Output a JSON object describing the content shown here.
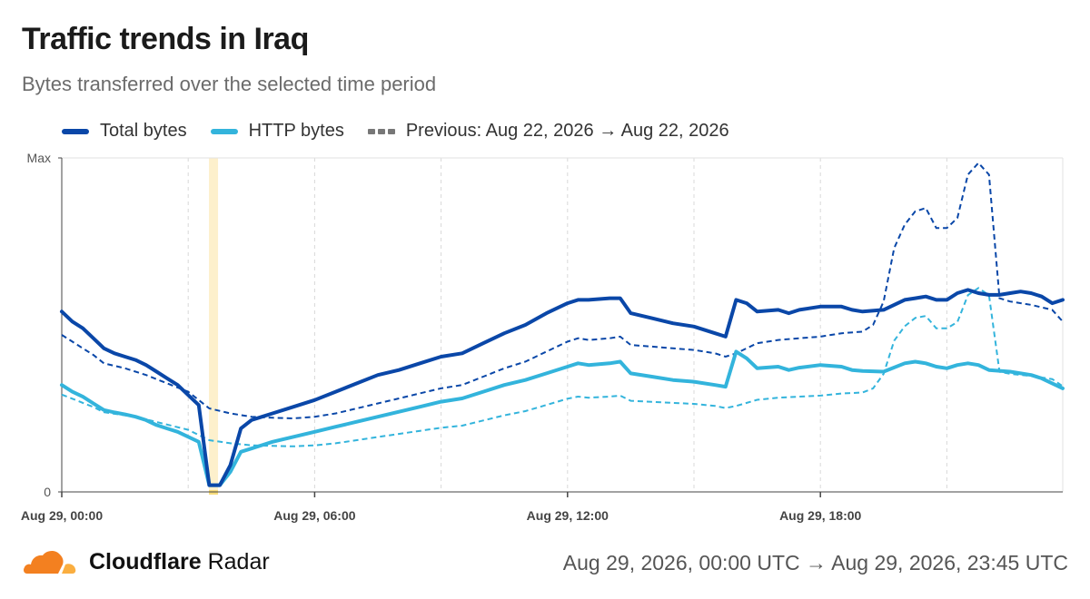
{
  "header": {
    "title": "Traffic trends in Iraq",
    "subtitle": "Bytes transferred over the selected time period"
  },
  "legend": {
    "total": "Total bytes",
    "http": "HTTP bytes",
    "previous": "Previous: Aug 22, 2026 → Aug 22, 2026"
  },
  "footer": {
    "brand_bold": "Cloudflare",
    "brand_light": "Radar",
    "range": "Aug 29, 2026, 00:00 UTC → Aug 29, 2026, 23:45 UTC"
  },
  "colors": {
    "total": "#0a47a8",
    "http": "#33b4dc",
    "previous_total": "#0a47a8",
    "previous_http": "#33b4dc",
    "highlight": "#fdf0cc",
    "grid": "#d8d8d8",
    "brand_orange": "#f38020"
  },
  "chart_data": {
    "type": "line",
    "title": "Traffic trends in Iraq",
    "ylabel": "",
    "y_tick_labels": [
      "0",
      "Max"
    ],
    "ylim": [
      0,
      1
    ],
    "xlim": [
      0,
      23.75
    ],
    "x_unit": "hour of Aug 29, 2026 (UTC)",
    "x_ticks": [
      0,
      6,
      12,
      18
    ],
    "x_tick_labels": [
      "Aug 29, 00:00",
      "Aug 29, 06:00",
      "Aug 29, 12:00",
      "Aug 29, 18:00"
    ],
    "highlight_x": 3.6,
    "grid": "vertical dashed",
    "legend_position": "top-left",
    "series": [
      {
        "name": "Total bytes",
        "style": "solid",
        "points": [
          [
            0,
            0.54
          ],
          [
            0.25,
            0.51
          ],
          [
            0.5,
            0.49
          ],
          [
            0.75,
            0.46
          ],
          [
            1,
            0.43
          ],
          [
            1.25,
            0.415
          ],
          [
            1.5,
            0.405
          ],
          [
            1.75,
            0.395
          ],
          [
            2,
            0.38
          ],
          [
            2.25,
            0.36
          ],
          [
            2.5,
            0.34
          ],
          [
            2.75,
            0.32
          ],
          [
            3,
            0.29
          ],
          [
            3.25,
            0.26
          ],
          [
            3.5,
            0.02
          ],
          [
            3.75,
            0.02
          ],
          [
            4,
            0.08
          ],
          [
            4.25,
            0.19
          ],
          [
            4.5,
            0.215
          ],
          [
            4.75,
            0.225
          ],
          [
            5,
            0.235
          ],
          [
            5.5,
            0.255
          ],
          [
            6,
            0.275
          ],
          [
            6.5,
            0.3
          ],
          [
            7,
            0.325
          ],
          [
            7.5,
            0.35
          ],
          [
            8,
            0.365
          ],
          [
            8.5,
            0.385
          ],
          [
            9,
            0.405
          ],
          [
            9.5,
            0.415
          ],
          [
            10,
            0.445
          ],
          [
            10.5,
            0.475
          ],
          [
            11,
            0.5
          ],
          [
            11.5,
            0.535
          ],
          [
            12,
            0.565
          ],
          [
            12.25,
            0.575
          ],
          [
            12.5,
            0.575
          ],
          [
            13,
            0.58
          ],
          [
            13.25,
            0.58
          ],
          [
            13.5,
            0.535
          ],
          [
            14,
            0.52
          ],
          [
            14.5,
            0.505
          ],
          [
            15,
            0.495
          ],
          [
            15.5,
            0.475
          ],
          [
            15.75,
            0.465
          ],
          [
            16,
            0.575
          ],
          [
            16.25,
            0.565
          ],
          [
            16.5,
            0.54
          ],
          [
            17,
            0.545
          ],
          [
            17.25,
            0.535
          ],
          [
            17.5,
            0.545
          ],
          [
            18,
            0.555
          ],
          [
            18.5,
            0.555
          ],
          [
            18.75,
            0.545
          ],
          [
            19,
            0.54
          ],
          [
            19.5,
            0.545
          ],
          [
            20,
            0.575
          ],
          [
            20.25,
            0.58
          ],
          [
            20.5,
            0.585
          ],
          [
            20.75,
            0.575
          ],
          [
            21,
            0.575
          ],
          [
            21.25,
            0.595
          ],
          [
            21.5,
            0.605
          ],
          [
            21.75,
            0.595
          ],
          [
            22,
            0.59
          ],
          [
            22.25,
            0.59
          ],
          [
            22.5,
            0.595
          ],
          [
            22.75,
            0.6
          ],
          [
            23,
            0.595
          ],
          [
            23.25,
            0.585
          ],
          [
            23.5,
            0.565
          ],
          [
            23.75,
            0.575
          ]
        ]
      },
      {
        "name": "HTTP bytes",
        "style": "solid",
        "points": [
          [
            0,
            0.32
          ],
          [
            0.25,
            0.3
          ],
          [
            0.5,
            0.285
          ],
          [
            0.75,
            0.265
          ],
          [
            1,
            0.245
          ],
          [
            1.25,
            0.238
          ],
          [
            1.5,
            0.232
          ],
          [
            1.75,
            0.225
          ],
          [
            2,
            0.215
          ],
          [
            2.25,
            0.2
          ],
          [
            2.5,
            0.19
          ],
          [
            2.75,
            0.18
          ],
          [
            3,
            0.165
          ],
          [
            3.25,
            0.15
          ],
          [
            3.5,
            0.02
          ],
          [
            3.75,
            0.02
          ],
          [
            4,
            0.06
          ],
          [
            4.25,
            0.12
          ],
          [
            4.5,
            0.13
          ],
          [
            4.75,
            0.14
          ],
          [
            5,
            0.15
          ],
          [
            5.5,
            0.165
          ],
          [
            6,
            0.18
          ],
          [
            6.5,
            0.195
          ],
          [
            7,
            0.21
          ],
          [
            7.5,
            0.225
          ],
          [
            8,
            0.24
          ],
          [
            8.5,
            0.255
          ],
          [
            9,
            0.27
          ],
          [
            9.5,
            0.28
          ],
          [
            10,
            0.3
          ],
          [
            10.5,
            0.32
          ],
          [
            11,
            0.335
          ],
          [
            11.5,
            0.355
          ],
          [
            12,
            0.375
          ],
          [
            12.25,
            0.385
          ],
          [
            12.5,
            0.38
          ],
          [
            13,
            0.385
          ],
          [
            13.25,
            0.39
          ],
          [
            13.5,
            0.355
          ],
          [
            14,
            0.345
          ],
          [
            14.5,
            0.335
          ],
          [
            15,
            0.33
          ],
          [
            15.5,
            0.32
          ],
          [
            15.75,
            0.315
          ],
          [
            16,
            0.42
          ],
          [
            16.25,
            0.4
          ],
          [
            16.5,
            0.37
          ],
          [
            17,
            0.375
          ],
          [
            17.25,
            0.365
          ],
          [
            17.5,
            0.372
          ],
          [
            18,
            0.38
          ],
          [
            18.5,
            0.375
          ],
          [
            18.75,
            0.365
          ],
          [
            19,
            0.362
          ],
          [
            19.5,
            0.36
          ],
          [
            20,
            0.385
          ],
          [
            20.25,
            0.39
          ],
          [
            20.5,
            0.385
          ],
          [
            20.75,
            0.375
          ],
          [
            21,
            0.37
          ],
          [
            21.25,
            0.38
          ],
          [
            21.5,
            0.385
          ],
          [
            21.75,
            0.38
          ],
          [
            22,
            0.365
          ],
          [
            22.5,
            0.36
          ],
          [
            23,
            0.35
          ],
          [
            23.25,
            0.34
          ],
          [
            23.5,
            0.325
          ],
          [
            23.75,
            0.31
          ]
        ]
      },
      {
        "name": "Previous: Aug 22, 2026 → Aug 22, 2026",
        "style": "dashed",
        "points": [
          [
            0,
            0.47
          ],
          [
            0.25,
            0.45
          ],
          [
            0.5,
            0.43
          ],
          [
            0.75,
            0.41
          ],
          [
            1,
            0.385
          ],
          [
            1.5,
            0.37
          ],
          [
            2,
            0.35
          ],
          [
            2.5,
            0.325
          ],
          [
            3,
            0.3
          ],
          [
            3.5,
            0.25
          ],
          [
            4,
            0.235
          ],
          [
            4.5,
            0.225
          ],
          [
            5,
            0.222
          ],
          [
            5.5,
            0.22
          ],
          [
            6,
            0.225
          ],
          [
            6.5,
            0.235
          ],
          [
            7,
            0.25
          ],
          [
            7.5,
            0.265
          ],
          [
            8,
            0.28
          ],
          [
            8.5,
            0.295
          ],
          [
            9,
            0.31
          ],
          [
            9.5,
            0.32
          ],
          [
            10,
            0.345
          ],
          [
            10.5,
            0.37
          ],
          [
            11,
            0.39
          ],
          [
            11.5,
            0.42
          ],
          [
            12,
            0.45
          ],
          [
            12.25,
            0.46
          ],
          [
            12.5,
            0.455
          ],
          [
            13,
            0.46
          ],
          [
            13.25,
            0.465
          ],
          [
            13.5,
            0.44
          ],
          [
            14,
            0.435
          ],
          [
            14.5,
            0.43
          ],
          [
            15,
            0.425
          ],
          [
            15.5,
            0.415
          ],
          [
            15.75,
            0.405
          ],
          [
            16,
            0.415
          ],
          [
            16.5,
            0.445
          ],
          [
            17,
            0.455
          ],
          [
            17.5,
            0.46
          ],
          [
            18,
            0.465
          ],
          [
            18.5,
            0.475
          ],
          [
            19,
            0.48
          ],
          [
            19.25,
            0.5
          ],
          [
            19.5,
            0.57
          ],
          [
            19.75,
            0.73
          ],
          [
            20,
            0.8
          ],
          [
            20.25,
            0.84
          ],
          [
            20.5,
            0.85
          ],
          [
            20.75,
            0.79
          ],
          [
            21,
            0.79
          ],
          [
            21.25,
            0.82
          ],
          [
            21.5,
            0.95
          ],
          [
            21.75,
            0.985
          ],
          [
            22,
            0.95
          ],
          [
            22.25,
            0.58
          ],
          [
            22.5,
            0.57
          ],
          [
            23,
            0.56
          ],
          [
            23.5,
            0.545
          ],
          [
            23.75,
            0.51
          ]
        ]
      }
    ]
  }
}
